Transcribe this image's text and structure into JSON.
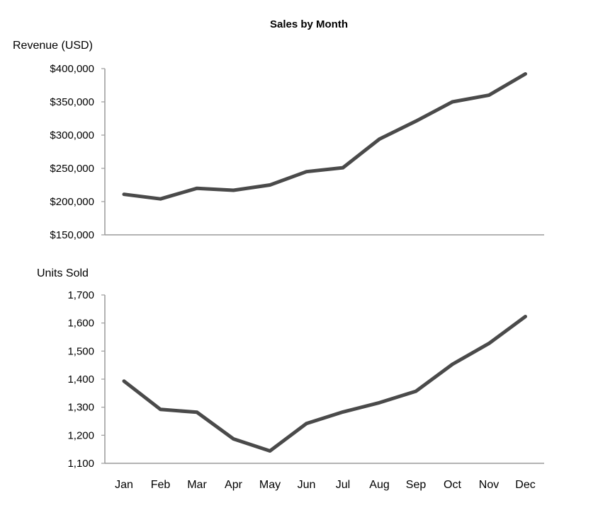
{
  "chart_data": {
    "title": "Sales by Month",
    "categories": [
      "Jan",
      "Feb",
      "Mar",
      "Apr",
      "May",
      "Jun",
      "Jul",
      "Aug",
      "Sep",
      "Oct",
      "Nov",
      "Dec"
    ],
    "panels": [
      {
        "type": "line",
        "ylabel": "Revenue (USD)",
        "ylim": [
          150000,
          400000
        ],
        "yticks": [
          "$400,000",
          "$350,000",
          "$300,000",
          "$250,000",
          "$200,000",
          "$150,000"
        ],
        "ytick_values": [
          400000,
          350000,
          300000,
          250000,
          200000,
          150000
        ],
        "values": [
          211000,
          204000,
          220000,
          217000,
          225000,
          245000,
          251000,
          294000,
          321000,
          350000,
          360000,
          392000
        ]
      },
      {
        "type": "line",
        "ylabel": "Units Sold",
        "ylim": [
          1100,
          1700
        ],
        "yticks": [
          "1,700",
          "1,600",
          "1,500",
          "1,400",
          "1,300",
          "1,200",
          "1,100"
        ],
        "ytick_values": [
          1700,
          1600,
          1500,
          1400,
          1300,
          1200,
          1100
        ],
        "values": [
          1393,
          1292,
          1282,
          1187,
          1144,
          1242,
          1283,
          1316,
          1357,
          1453,
          1527,
          1623
        ]
      }
    ],
    "line_color": "#4a4a4a",
    "axis_color": "#9a9a9a",
    "grid": false,
    "legend": "none"
  }
}
